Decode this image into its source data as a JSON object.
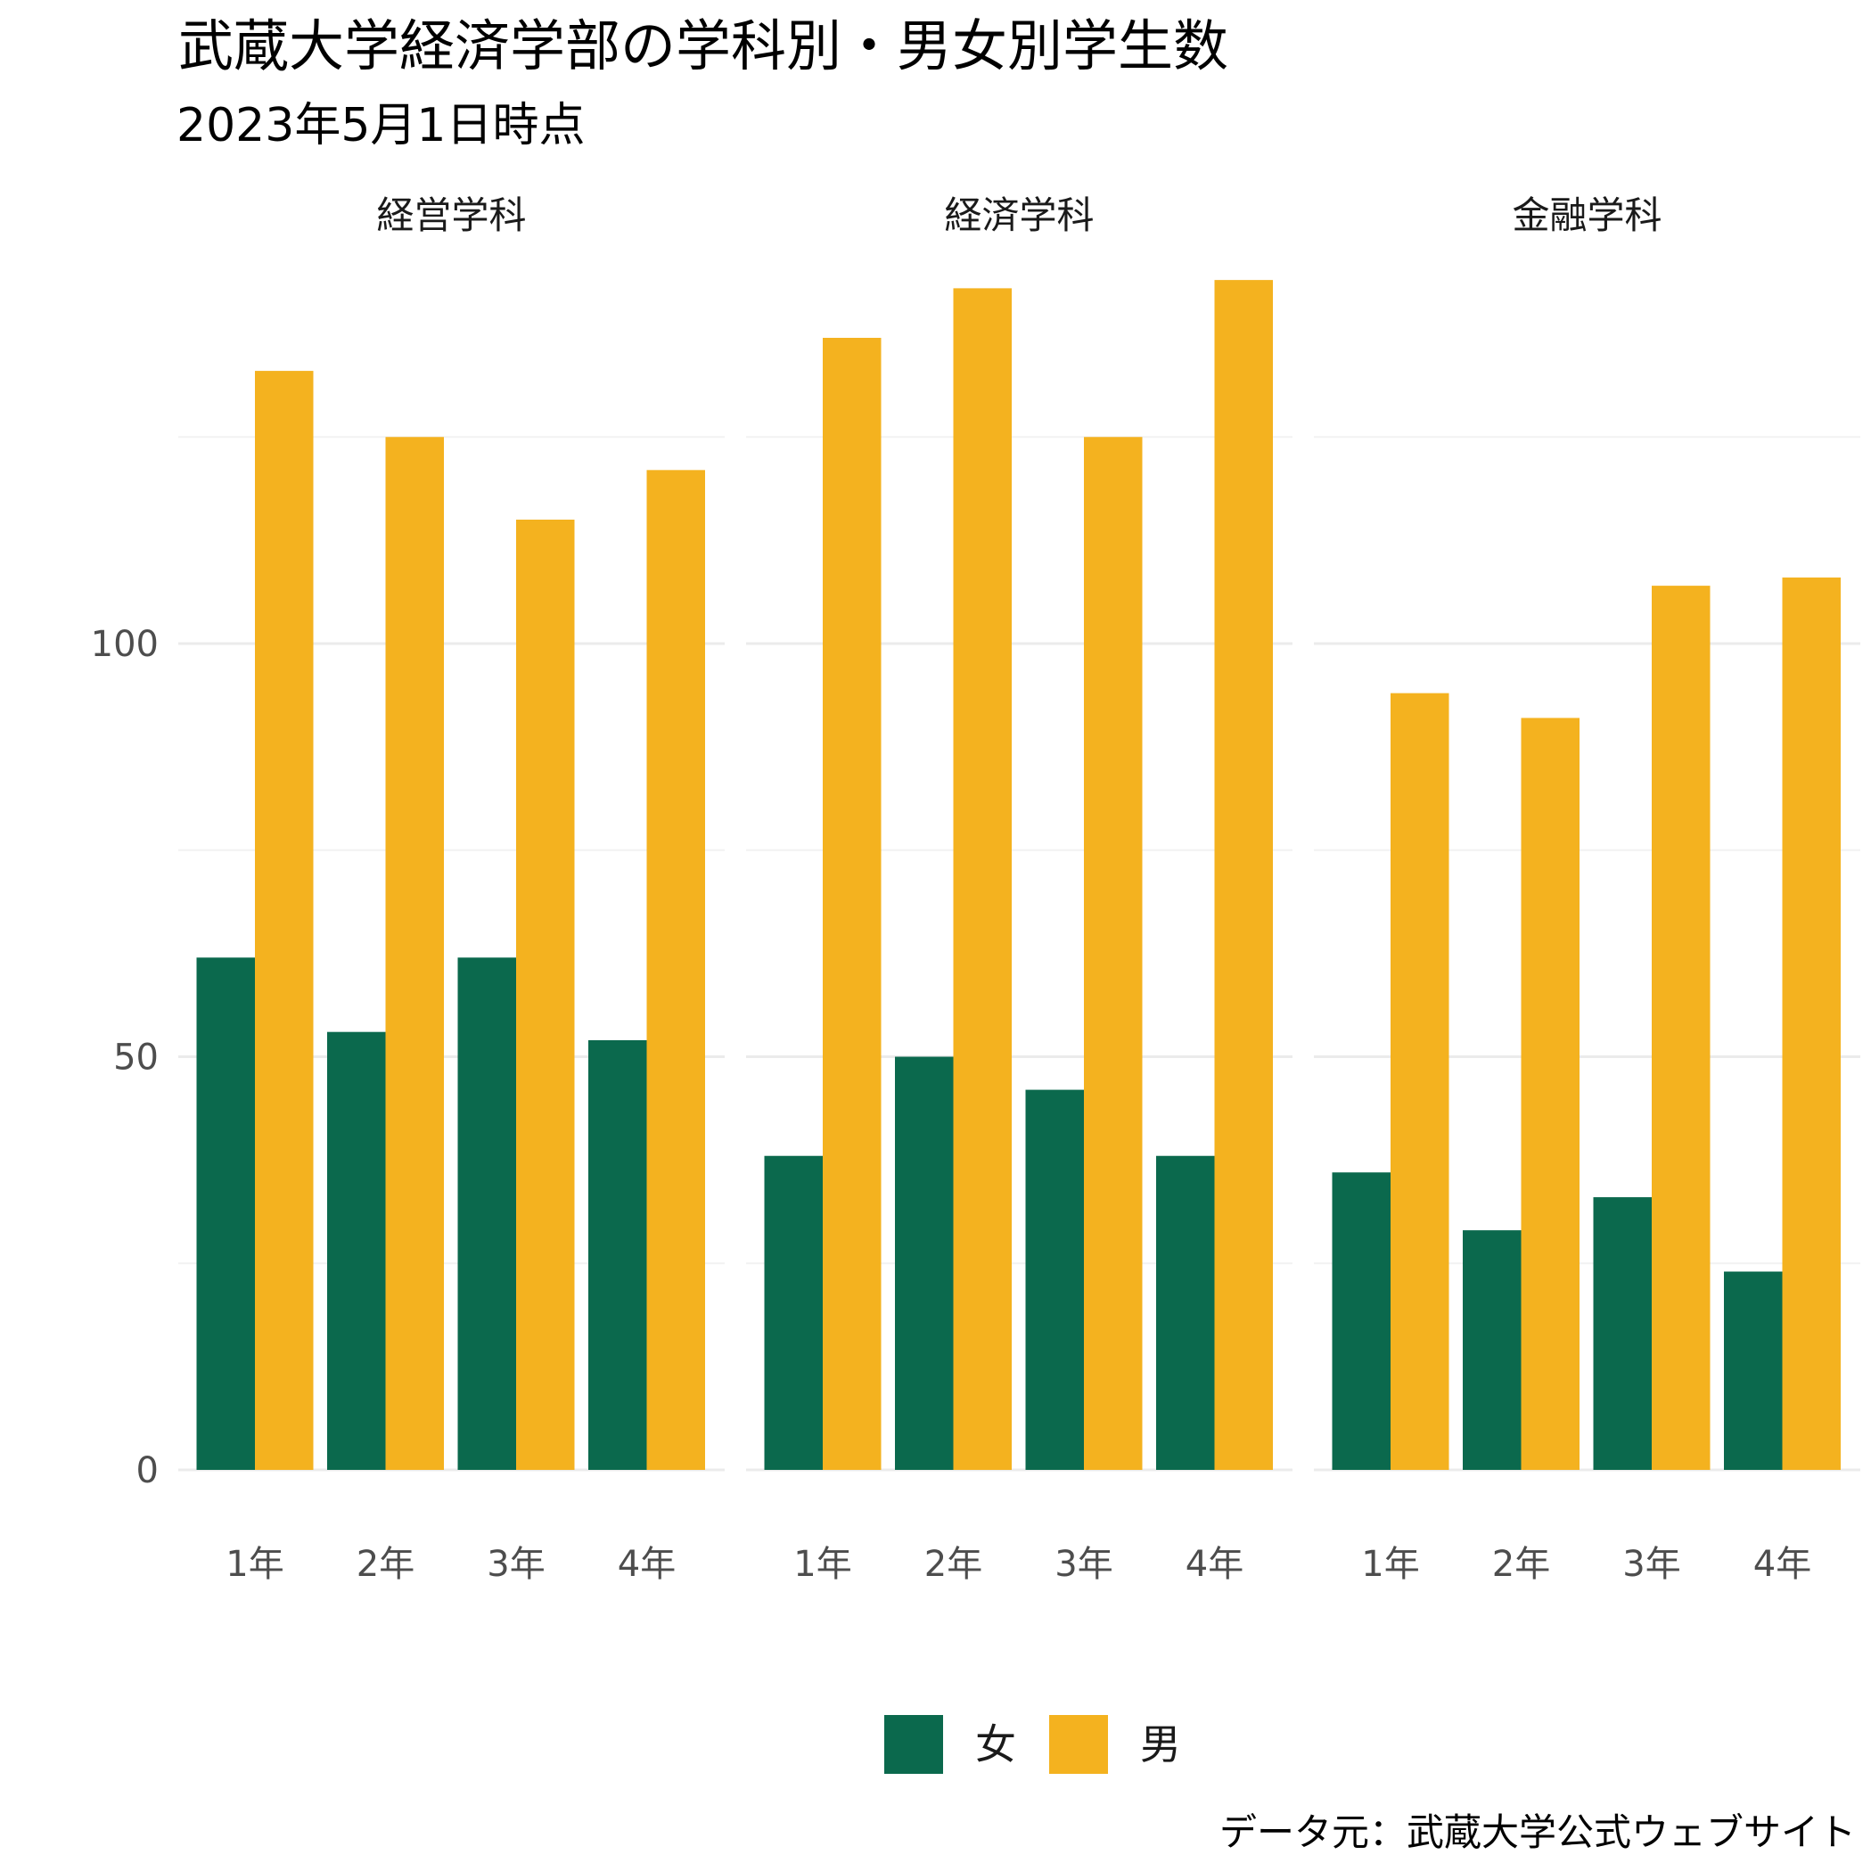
{
  "chart_data": {
    "type": "bar",
    "title": "武蔵大学経済学部の学科別・男女別学生数",
    "subtitle": "2023年5月1日時点",
    "caption": "データ元：武蔵大学公式ウェブサイト",
    "categories": [
      "1年",
      "2年",
      "3年",
      "4年"
    ],
    "facets": [
      {
        "name": "経営学科",
        "series": [
          {
            "name": "女",
            "values": [
              62,
              53,
              62,
              52
            ]
          },
          {
            "name": "男",
            "values": [
              133,
              125,
              115,
              121
            ]
          }
        ]
      },
      {
        "name": "経済学科",
        "series": [
          {
            "name": "女",
            "values": [
              38,
              50,
              46,
              38
            ]
          },
          {
            "name": "男",
            "values": [
              137,
              143,
              125,
              144
            ]
          }
        ]
      },
      {
        "name": "金融学科",
        "series": [
          {
            "name": "女",
            "values": [
              36,
              29,
              33,
              24
            ]
          },
          {
            "name": "男",
            "values": [
              94,
              91,
              107,
              108
            ]
          }
        ]
      }
    ],
    "ylim": [
      0,
      145
    ],
    "yticks": [
      0,
      50,
      100
    ],
    "legend": {
      "position": "bottom",
      "entries": [
        "女",
        "男"
      ]
    },
    "colors": {
      "女": "#0b694d",
      "男": "#f4b21f"
    },
    "grid": true
  }
}
